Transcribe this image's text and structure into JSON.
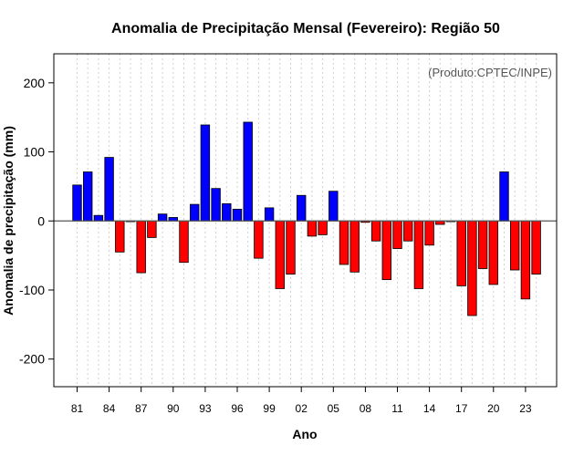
{
  "chart_data": {
    "type": "bar",
    "title": "Anomalia de Precipitação Mensal (Fevereiro): Região 50",
    "xlabel": "Ano",
    "ylabel": "Anomalia de precipitação (mm)",
    "annotation": "(Produto:CPTEC/INPE)",
    "ylim": [
      -240,
      242
    ],
    "yticks": [
      -200,
      -100,
      0,
      100,
      200
    ],
    "grid": "vertical-dotted",
    "colors": {
      "positive": "#0000ff",
      "negative": "#ff0000",
      "zero_line": "#555555",
      "grid": "#d0d0d0"
    },
    "tick_labels": [
      "81",
      "84",
      "87",
      "90",
      "93",
      "96",
      "99",
      "02",
      "05",
      "08",
      "11",
      "14",
      "17",
      "20",
      "23"
    ],
    "categories": [
      "1981",
      "1982",
      "1983",
      "1984",
      "1985",
      "1986",
      "1987",
      "1988",
      "1989",
      "1990",
      "1991",
      "1992",
      "1993",
      "1994",
      "1995",
      "1996",
      "1997",
      "1998",
      "1999",
      "2000",
      "2001",
      "2002",
      "2003",
      "2004",
      "2005",
      "2006",
      "2007",
      "2008",
      "2009",
      "2010",
      "2011",
      "2012",
      "2013",
      "2014",
      "2015",
      "2016",
      "2017",
      "2018",
      "2019",
      "2020",
      "2021",
      "2022",
      "2023",
      "2024"
    ],
    "values": [
      52,
      71,
      8,
      92,
      -45,
      -1,
      -75,
      -24,
      10,
      5,
      -60,
      24,
      139,
      47,
      25,
      17,
      143,
      -54,
      19,
      -98,
      -77,
      37,
      -22,
      -20,
      43,
      -63,
      -74,
      -2,
      -29,
      -85,
      -40,
      -29,
      -98,
      -35,
      -5,
      -1,
      -94,
      -137,
      -69,
      -92,
      71,
      -71,
      -113,
      -77
    ]
  }
}
